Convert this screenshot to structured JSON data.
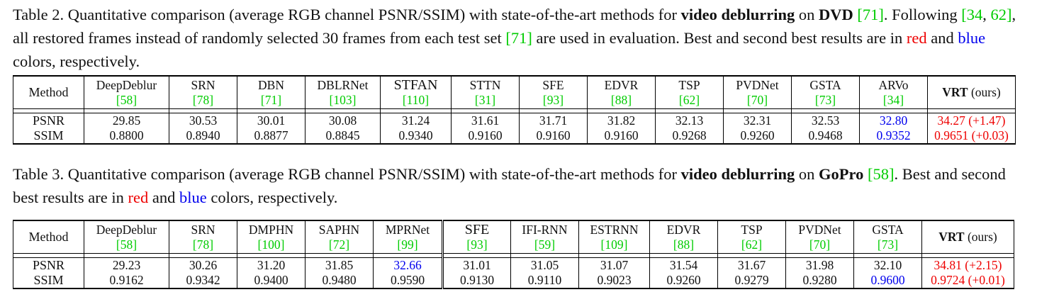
{
  "table2": {
    "caption": {
      "label": "Table 2.",
      "text1": " Quantitative comparison (average RGB channel PSNR/SSIM) with state-of-the-art methods for ",
      "bold1": "video deblurring",
      "text2": " on ",
      "bold2": "DVD",
      "text3": " ",
      "cite1": "[71]",
      "text4": ". Following ",
      "cite2a": "[34",
      "comma": ", ",
      "cite2b": "62]",
      "text5": ", all restored frames instead of randomly selected 30 frames from each test set ",
      "cite3": "[71]",
      "text6": " are used in evaluation. Best and second best results are in ",
      "red_word": "red",
      "and_word": " and ",
      "blue_word": "blue",
      "text7": " colors, respectively."
    },
    "header_label": "Method",
    "row_labels": [
      "PSNR",
      "SSIM"
    ],
    "methods": [
      {
        "name": "DeepDeblur",
        "cite": "[58]"
      },
      {
        "name": "SRN",
        "cite": "[78]"
      },
      {
        "name": "DBN",
        "cite": "[71]"
      },
      {
        "name": "DBLRNet",
        "cite": "[103]"
      },
      {
        "name": "STFAN",
        "cite": "[110]"
      },
      {
        "name": "STTN",
        "cite": "[31]"
      },
      {
        "name": "SFE",
        "cite": "[93]"
      },
      {
        "name": "EDVR",
        "cite": "[88]"
      },
      {
        "name": "TSP",
        "cite": "[62]"
      },
      {
        "name": "PVDNet",
        "cite": "[70]"
      },
      {
        "name": "GSTA",
        "cite": "[73]"
      },
      {
        "name": "ARVo",
        "cite": "[34]"
      }
    ],
    "vrt_name": "VRT",
    "vrt_suffix": " (ours)",
    "psnr": [
      "29.85",
      "30.53",
      "30.01",
      "30.08",
      "31.24",
      "31.61",
      "31.71",
      "31.82",
      "32.13",
      "32.31",
      "32.53",
      "32.80",
      "34.27 (+1.47)"
    ],
    "ssim": [
      "0.8800",
      "0.8940",
      "0.8877",
      "0.8845",
      "0.9340",
      "0.9160",
      "0.9160",
      "0.9160",
      "0.9268",
      "0.9260",
      "0.9468",
      "0.9352",
      "0.9651 (+0.03)"
    ]
  },
  "table3": {
    "caption": {
      "label": "Table 3.",
      "text1": " Quantitative comparison (average RGB channel PSNR/SSIM) with state-of-the-art methods for ",
      "bold1": "video deblurring",
      "text2": " on ",
      "bold2": "GoPro",
      "text3": " ",
      "cite1": "[58]",
      "text4": ". Best and second best results are in ",
      "red_word": "red",
      "and_word": " and ",
      "blue_word": "blue",
      "text5": " colors, respectively."
    },
    "header_label": "Method",
    "row_labels": [
      "PSNR",
      "SSIM"
    ],
    "methods": [
      {
        "name": "DeepDeblur",
        "cite": "[58]"
      },
      {
        "name": "SRN",
        "cite": "[78]"
      },
      {
        "name": "DMPHN",
        "cite": "[100]"
      },
      {
        "name": "SAPHN",
        "cite": "[72]"
      },
      {
        "name": "MPRNet",
        "cite": "[99]"
      },
      {
        "name": "SFE",
        "cite": "[93]"
      },
      {
        "name": "IFI-RNN",
        "cite": "[59]"
      },
      {
        "name": "ESTRNN",
        "cite": "[109]"
      },
      {
        "name": "EDVR",
        "cite": "[88]"
      },
      {
        "name": "TSP",
        "cite": "[62]"
      },
      {
        "name": "PVDNet",
        "cite": "[70]"
      },
      {
        "name": "GSTA",
        "cite": "[73]"
      }
    ],
    "vrt_name": "VRT",
    "vrt_suffix": " (ours)",
    "psnr": [
      "29.23",
      "30.26",
      "31.20",
      "31.85",
      "32.66",
      "31.01",
      "31.05",
      "31.07",
      "31.54",
      "31.67",
      "31.98",
      "32.10",
      "34.81 (+2.15)"
    ],
    "ssim": [
      "0.9162",
      "0.9342",
      "0.9400",
      "0.9480",
      "0.9590",
      "0.9130",
      "0.9110",
      "0.9023",
      "0.9260",
      "0.9279",
      "0.9280",
      "0.9600",
      "0.9724 (+0.01)"
    ]
  },
  "colors": {
    "best": "#ee0000",
    "second": "#0000ee",
    "citation": "#00cc00"
  }
}
